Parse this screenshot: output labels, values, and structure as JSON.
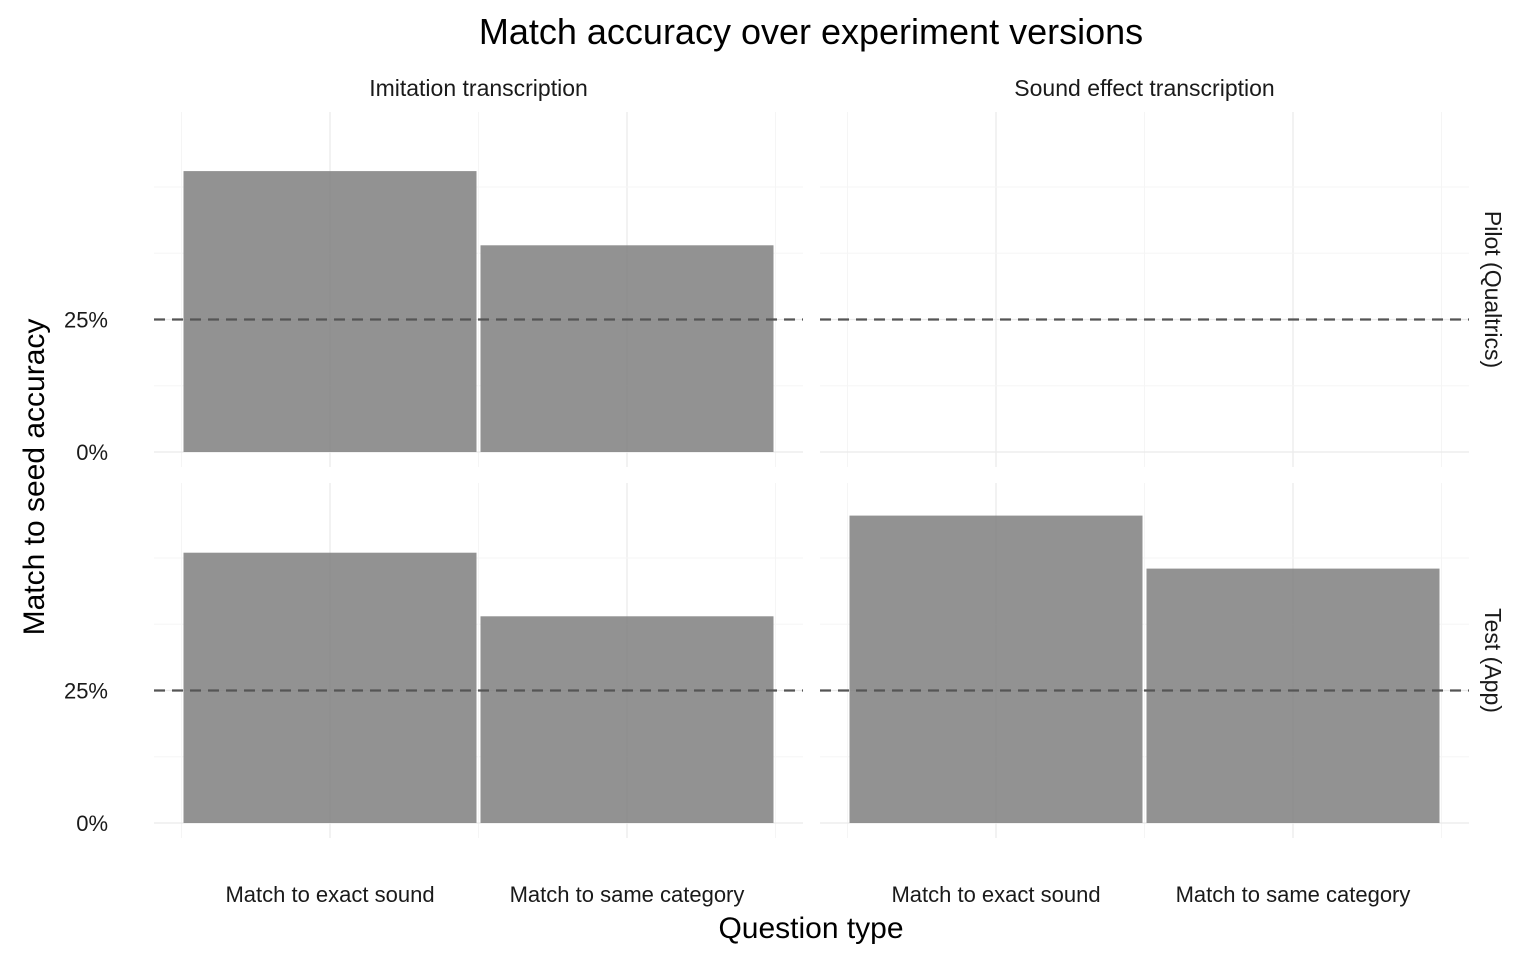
{
  "chart_data": {
    "type": "bar",
    "title": "Match accuracy over experiment versions",
    "xlabel": "Question type",
    "ylabel": "Match to seed accuracy",
    "categories": [
      "Match to exact sound",
      "Match to same category"
    ],
    "facet_columns": [
      "Imitation transcription",
      "Sound effect transcription"
    ],
    "facet_rows": [
      "Pilot (Qualtrics)",
      "Test (App)"
    ],
    "ylim": [
      0,
      0.58
    ],
    "yticks": [
      {
        "value": 0,
        "label": "0%"
      },
      {
        "value": 0.25,
        "label": "25%"
      }
    ],
    "reference_line": {
      "value": 0.25,
      "style": "dashed"
    },
    "bar_color": "#7f7f7f",
    "grid": true,
    "panels": [
      {
        "row": "Pilot (Qualtrics)",
        "column": "Imitation transcription",
        "values": [
          0.53,
          0.39
        ]
      },
      {
        "row": "Pilot (Qualtrics)",
        "column": "Sound effect transcription",
        "values": []
      },
      {
        "row": "Test (App)",
        "column": "Imitation transcription",
        "values": [
          0.51,
          0.39
        ]
      },
      {
        "row": "Test (App)",
        "column": "Sound effect transcription",
        "values": [
          0.58,
          0.48
        ]
      }
    ]
  }
}
